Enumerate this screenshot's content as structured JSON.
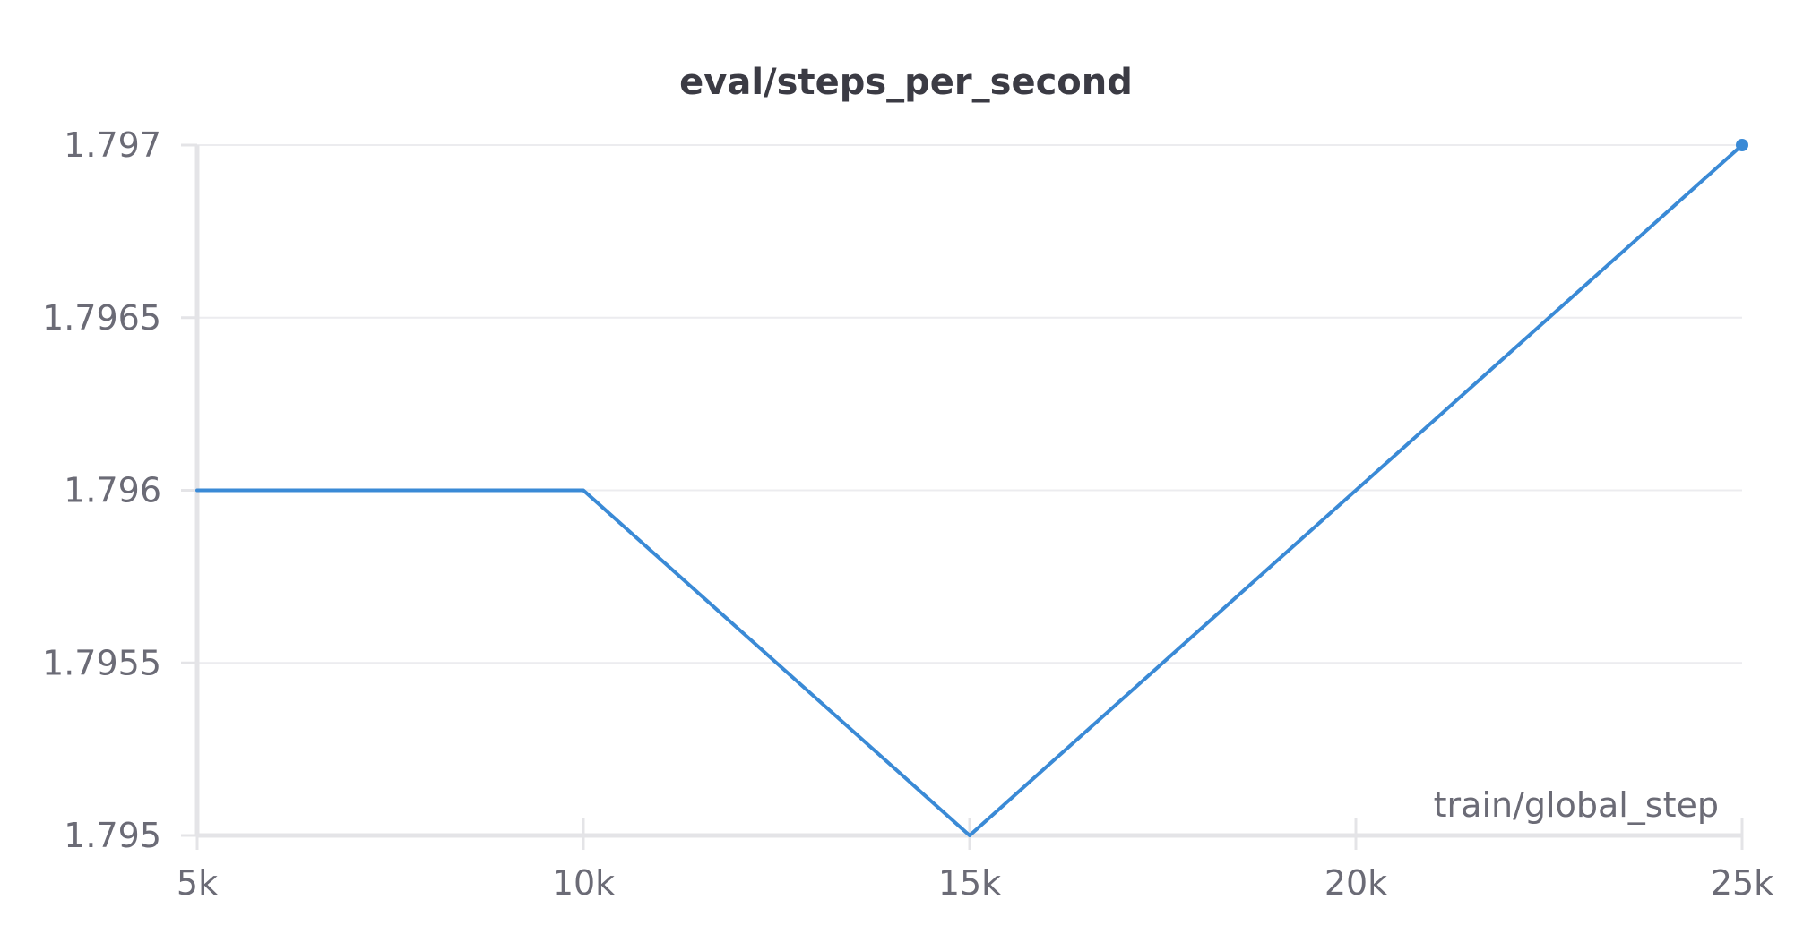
{
  "chart_data": {
    "type": "line",
    "title": "eval/steps_per_second",
    "xlabel": "train/global_step",
    "ylabel": "",
    "x": [
      5000,
      10000,
      15000,
      20000,
      25000
    ],
    "series": [
      {
        "values": [
          1.796,
          1.796,
          1.795,
          1.796,
          1.797
        ]
      }
    ],
    "xlim": [
      5000,
      25000
    ],
    "ylim": [
      1.795,
      1.797
    ],
    "xticks": [
      5000,
      10000,
      15000,
      20000,
      25000
    ],
    "xtick_labels": [
      "5k",
      "10k",
      "15k",
      "20k",
      "25k"
    ],
    "yticks": [
      1.795,
      1.7955,
      1.796,
      1.7965,
      1.797
    ],
    "ytick_labels": [
      "1.795",
      "1.7955",
      "1.796",
      "1.7965",
      "1.797"
    ],
    "grid": true,
    "line_color": "#3a8ad6",
    "axis_color": "#e4e4e7",
    "grid_color": "#ececef"
  }
}
